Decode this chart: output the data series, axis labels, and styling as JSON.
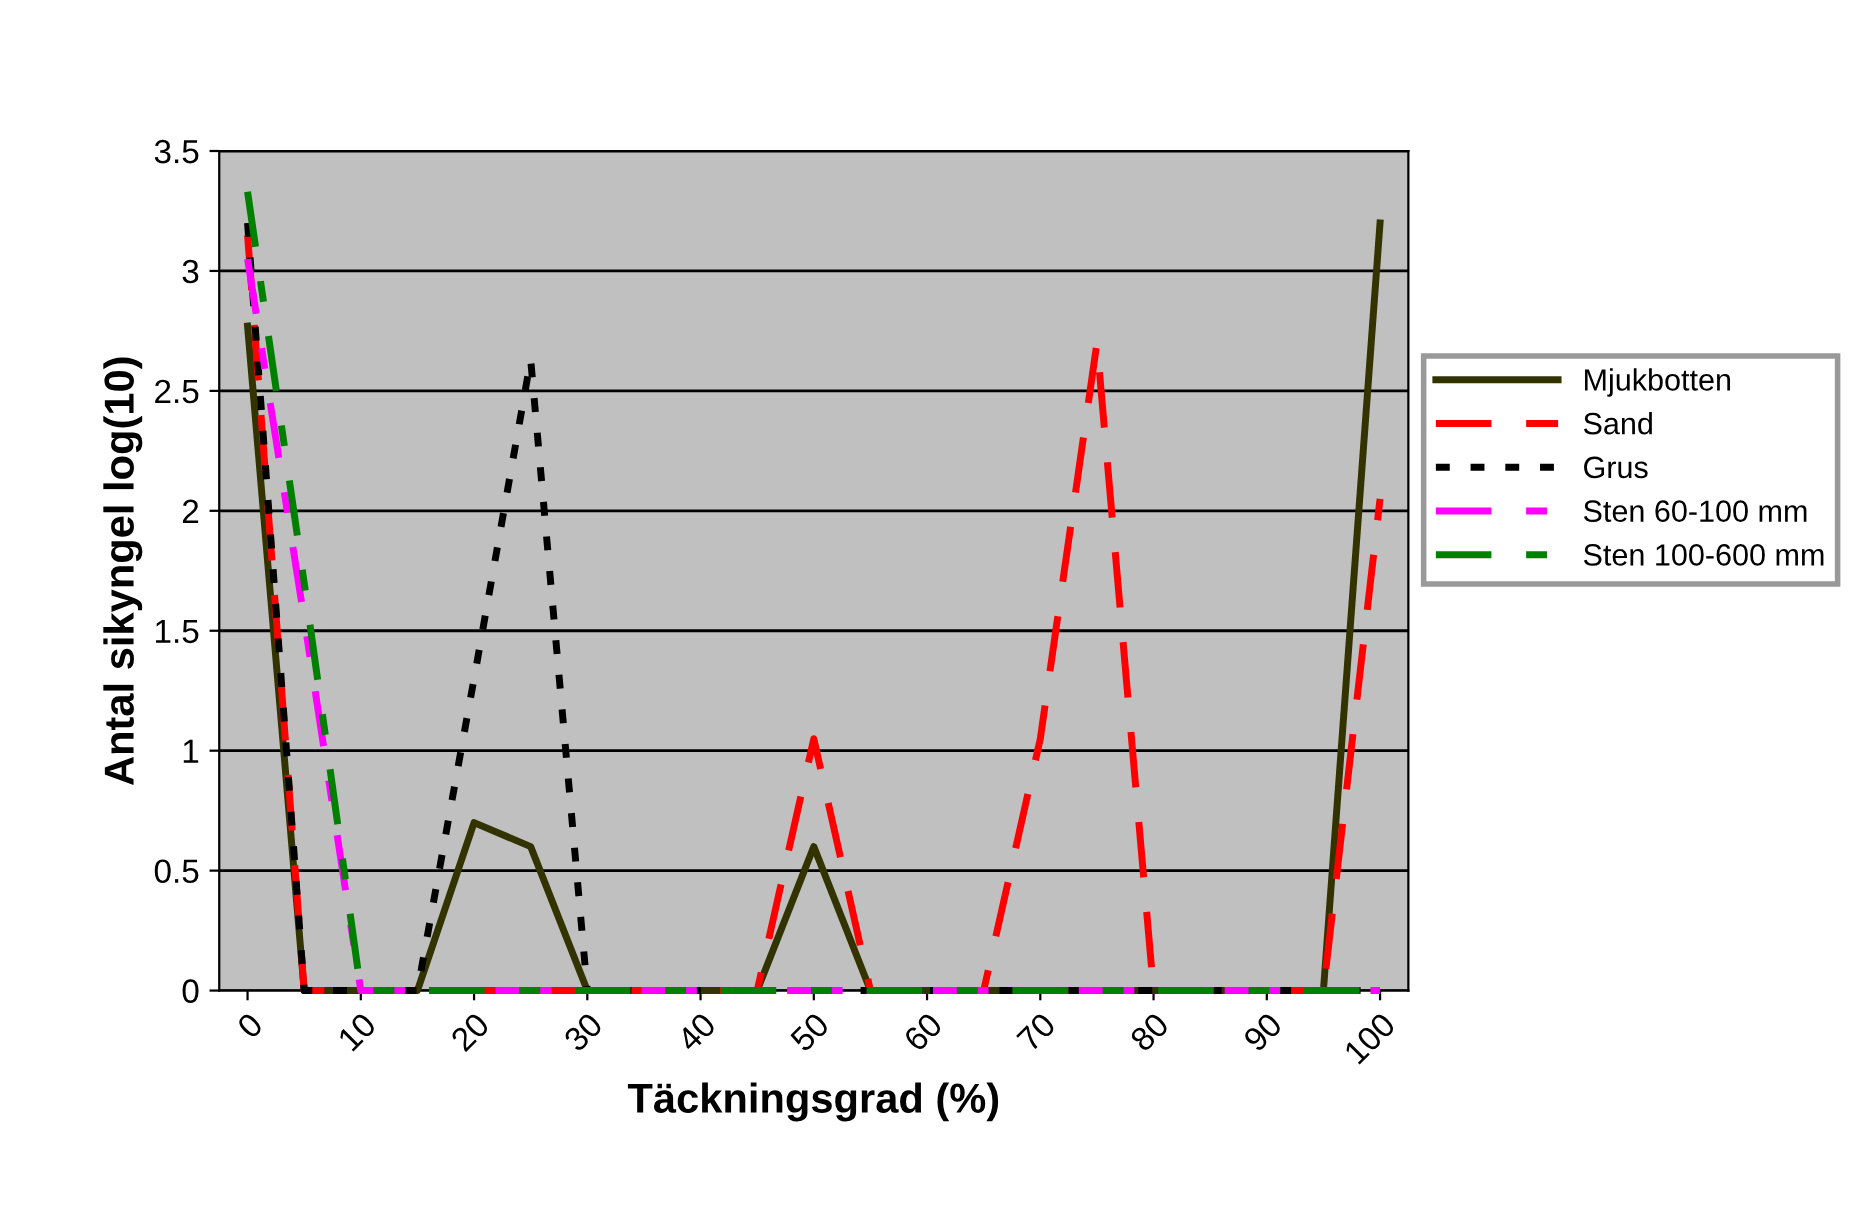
{
  "chart_data": {
    "type": "line",
    "xlabel": "Täckningsgrad (%)",
    "ylabel": "Antal sikyngel log(10)",
    "x": [
      0,
      5,
      10,
      15,
      20,
      25,
      30,
      35,
      40,
      45,
      50,
      55,
      60,
      65,
      70,
      75,
      80,
      85,
      90,
      95,
      100
    ],
    "series": [
      {
        "name": "Mjukbotten",
        "color": "#333300",
        "line_style": "solid",
        "values": [
          2.77,
          0,
          0,
          0,
          0.7,
          0.6,
          0,
          0,
          0,
          0,
          0.6,
          0,
          0,
          0,
          0,
          0,
          0,
          0,
          0,
          0,
          3.2
        ]
      },
      {
        "name": "Sand",
        "color": "#ff0000",
        "line_style": "dashed",
        "values": [
          3.15,
          0,
          0,
          0,
          0,
          0,
          0,
          0,
          0,
          0,
          1.05,
          0,
          0,
          0,
          1.05,
          2.7,
          0,
          0,
          0,
          0,
          2.05
        ]
      },
      {
        "name": "Grus",
        "color": "#000000",
        "line_style": "dotted",
        "values": [
          3.2,
          0,
          0,
          0,
          1.3,
          2.63,
          0,
          0,
          0,
          0,
          0,
          0,
          0,
          0,
          0,
          0,
          0,
          0,
          0,
          0,
          0
        ]
      },
      {
        "name": "Sten 60-100 mm",
        "color": "#ff00ff",
        "line_style": "dashdot",
        "values": [
          3.05,
          1.55,
          0,
          0,
          0,
          0,
          0,
          0,
          0,
          0,
          0,
          0,
          0,
          0,
          0,
          0,
          0,
          0,
          0,
          0,
          0
        ]
      },
      {
        "name": "Sten 100-600 mm",
        "color": "#008000",
        "line_style": "dashdot",
        "values": [
          3.33,
          1.7,
          0,
          0,
          0,
          0,
          0,
          0,
          0,
          0,
          0,
          0,
          0,
          0,
          0,
          0,
          0,
          0,
          0,
          0,
          0
        ]
      }
    ],
    "xlim": [
      -2.5,
      102.5
    ],
    "xticks": [
      0,
      10,
      20,
      30,
      40,
      50,
      60,
      70,
      80,
      90,
      100
    ],
    "ylim": [
      0,
      3.5
    ],
    "yticks": [
      0,
      0.5,
      1,
      1.5,
      2,
      2.5,
      3,
      3.5
    ],
    "grid": "y",
    "legend": "right"
  }
}
